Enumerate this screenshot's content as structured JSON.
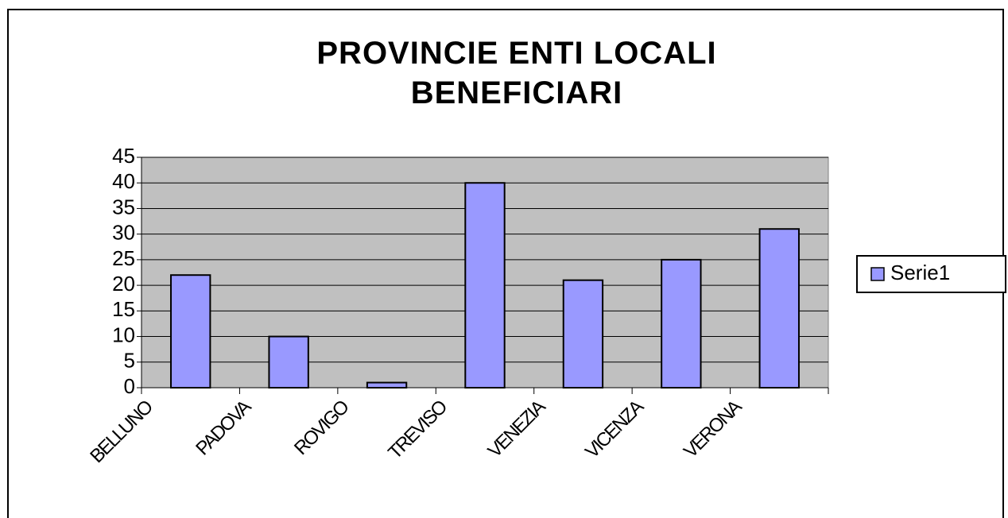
{
  "chart_data": {
    "type": "bar",
    "title": "PROVINCIE ENTI LOCALI BENEFICIARI",
    "categories": [
      "BELLUNO",
      "PADOVA",
      "ROVIGO",
      "TREVISO",
      "VENEZIA",
      "VICENZA",
      "VERONA"
    ],
    "series": [
      {
        "name": "Serie1",
        "color": "#9999ff",
        "values": [
          22,
          10,
          1,
          40,
          21,
          25,
          31
        ]
      }
    ],
    "ylim": [
      0,
      45
    ],
    "yticks": [
      0,
      5,
      10,
      15,
      20,
      25,
      30,
      35,
      40,
      45
    ],
    "grid": true,
    "legend": "right"
  }
}
